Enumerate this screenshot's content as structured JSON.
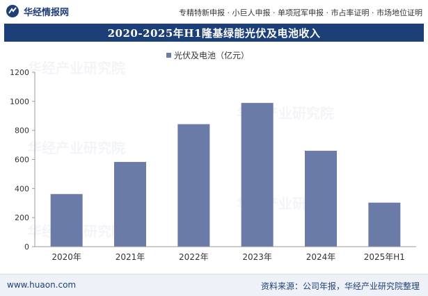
{
  "header": {
    "brand": "华经情报网",
    "links": "专精特新申报 · 小巨人申报 · 单项冠军申报 · 市占率证明 · 市场地位证明"
  },
  "chart_data": {
    "type": "bar",
    "title": "2020-2025年H1隆基绿能光伏及电池收入",
    "categories": [
      "2020年",
      "2021年",
      "2022年",
      "2023年",
      "2024年",
      "2025年H1"
    ],
    "series": [
      {
        "name": "光伏及电池（亿元）",
        "values": [
          362,
          583,
          843,
          989,
          660,
          303
        ],
        "color": "#6b7ba8"
      }
    ],
    "ylim": [
      0,
      1200
    ],
    "yticks": [
      0,
      200,
      400,
      600,
      800,
      1000,
      1200
    ],
    "legend_position": "top-center",
    "grid": false
  },
  "watermark": "华经产业研究院",
  "footer": {
    "site": "www.huaon.com",
    "source": "资料来源：公司年报，华经产业研究院整理"
  }
}
